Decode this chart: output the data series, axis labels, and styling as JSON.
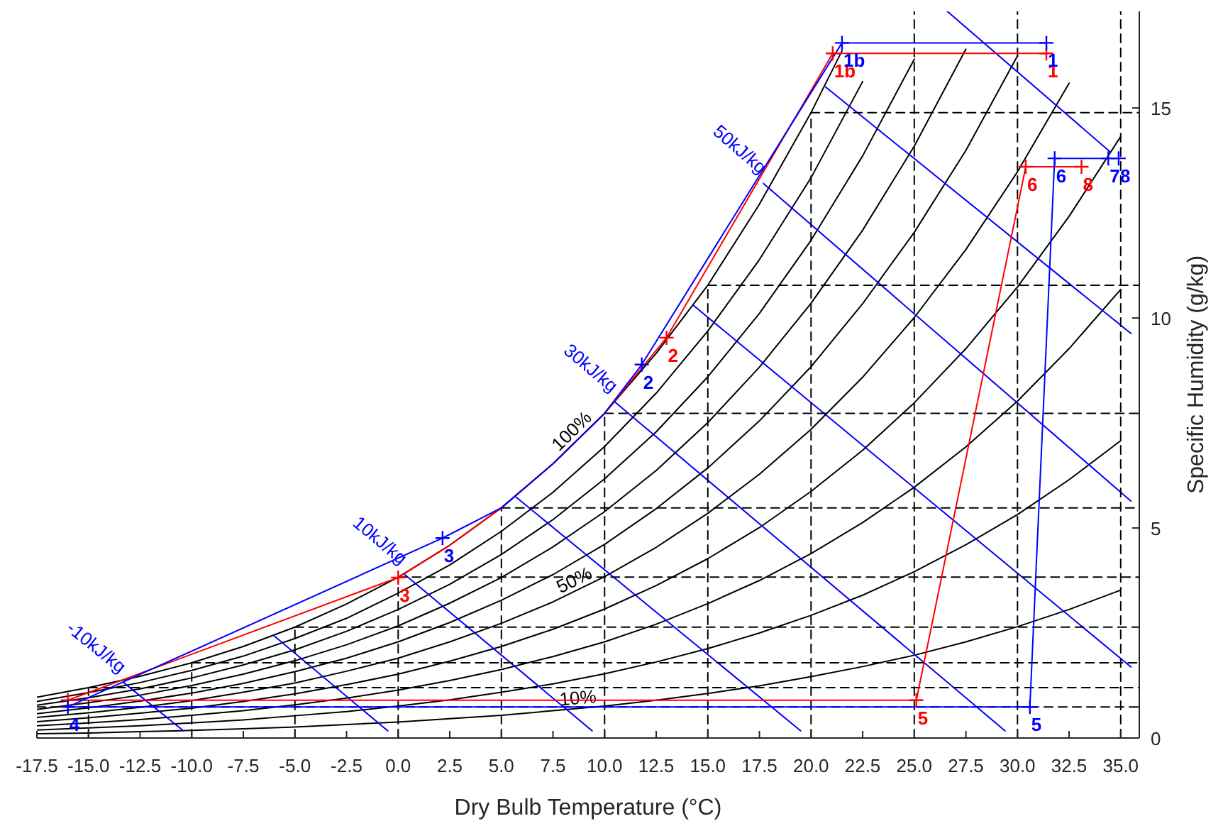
{
  "chart_data": {
    "type": "line",
    "xlabel": "Dry Bulb Temperature (°C)",
    "ylabel": "Specific Humidity (g/kg)",
    "xlim": [
      -17.5,
      35.9
    ],
    "ylim": [
      0,
      17.3
    ],
    "xticks": [
      {
        "value": -17.5,
        "label": "-17.5"
      },
      {
        "value": -15,
        "label": "-15.0"
      },
      {
        "value": -12.5,
        "label": "-12.5"
      },
      {
        "value": -10,
        "label": "-10.0"
      },
      {
        "value": -7.5,
        "label": "-7.5"
      },
      {
        "value": -5,
        "label": "-5.0"
      },
      {
        "value": -2.5,
        "label": "-2.5"
      },
      {
        "value": 0,
        "label": "0.0"
      },
      {
        "value": 2.5,
        "label": "2.5"
      },
      {
        "value": 5,
        "label": "5.0"
      },
      {
        "value": 7.5,
        "label": "7.5"
      },
      {
        "value": 10,
        "label": "10.0"
      },
      {
        "value": 12.5,
        "label": "12.5"
      },
      {
        "value": 15,
        "label": "15.0"
      },
      {
        "value": 17.5,
        "label": "17.5"
      },
      {
        "value": 20,
        "label": "20.0"
      },
      {
        "value": 22.5,
        "label": "22.5"
      },
      {
        "value": 25,
        "label": "25.0"
      },
      {
        "value": 27.5,
        "label": "27.5"
      },
      {
        "value": 30,
        "label": "30.0"
      },
      {
        "value": 32.5,
        "label": "32.5"
      },
      {
        "value": 35,
        "label": "35.0"
      }
    ],
    "yticks": [
      0,
      5,
      10,
      15
    ],
    "series": [
      {
        "name": "10%",
        "color": "#000000",
        "x": [
          -17.5,
          -15,
          -12.5,
          -10,
          -7.5,
          -5,
          -2.5,
          0,
          2.5,
          5,
          7.5,
          10,
          12.5,
          15,
          17.5,
          20,
          22.5,
          25,
          27.5,
          30,
          32.5,
          35
        ],
        "values": [
          0.1,
          0.12,
          0.15,
          0.18,
          0.22,
          0.26,
          0.32,
          0.38,
          0.46,
          0.54,
          0.65,
          0.76,
          0.9,
          1.06,
          1.24,
          1.46,
          1.7,
          1.97,
          2.29,
          2.65,
          3.06,
          3.52
        ]
      },
      {
        "color": "#000000",
        "x": [
          -17.5,
          -15,
          -12.5,
          -10,
          -7.5,
          -5,
          -2.5,
          0,
          2.5,
          5,
          7.5,
          10,
          12.5,
          15,
          17.5,
          20,
          22.5,
          25,
          27.5,
          30,
          32.5,
          35
        ],
        "values": [
          0.19,
          0.24,
          0.29,
          0.36,
          0.43,
          0.53,
          0.63,
          0.76,
          0.91,
          1.09,
          1.29,
          1.53,
          1.81,
          2.13,
          2.5,
          2.92,
          3.4,
          3.96,
          4.6,
          5.32,
          6.15,
          7.08
        ]
      },
      {
        "color": "#000000",
        "x": [
          -17.5,
          -15,
          -12.5,
          -10,
          -7.5,
          -5,
          -2.5,
          0,
          2.5,
          5,
          7.5,
          10,
          12.5,
          15,
          17.5,
          20,
          22.5,
          25,
          27.5,
          30,
          32.5,
          35
        ],
        "values": [
          0.29,
          0.36,
          0.44,
          0.54,
          0.65,
          0.79,
          0.95,
          1.14,
          1.37,
          1.63,
          1.94,
          2.29,
          2.71,
          3.2,
          3.75,
          4.39,
          5.13,
          5.97,
          6.93,
          8.02,
          9.27,
          10.68
        ]
      },
      {
        "color": "#000000",
        "x": [
          -17.5,
          -15,
          -12.5,
          -10,
          -7.5,
          -5,
          -2.5,
          0,
          2.5,
          5,
          7.5,
          10,
          12.5,
          15,
          17.5,
          20,
          22.5,
          25,
          27.5,
          30,
          32.5,
          35
        ],
        "values": [
          0.39,
          0.48,
          0.59,
          0.71,
          0.87,
          1.05,
          1.27,
          1.52,
          1.83,
          2.18,
          2.59,
          3.07,
          3.63,
          4.27,
          5.01,
          5.87,
          6.85,
          7.98,
          9.27,
          10.74,
          12.42,
          14.32
        ]
      },
      {
        "name": "50%",
        "color": "#000000",
        "x": [
          -17.5,
          -15,
          -12.5,
          -10,
          -7.5,
          -5,
          -2.5,
          0,
          2.5,
          5,
          7.5,
          10,
          12.5,
          15,
          17.5,
          20,
          22.5,
          25,
          27.5,
          30,
          32.5
        ],
        "values": [
          0.49,
          0.6,
          0.73,
          0.89,
          1.09,
          1.31,
          1.59,
          1.9,
          2.29,
          2.73,
          3.24,
          3.84,
          4.54,
          5.35,
          6.28,
          7.35,
          8.59,
          10.01,
          11.63,
          13.48,
          15.59
        ]
      },
      {
        "color": "#000000",
        "x": [
          -17.5,
          -15,
          -12.5,
          -10,
          -7.5,
          -5,
          -2.5,
          0,
          2.5,
          5,
          7.5,
          10,
          12.5,
          15,
          17.5,
          20,
          22.5,
          25,
          27.5,
          30
        ],
        "values": [
          0.58,
          0.72,
          0.88,
          1.07,
          1.3,
          1.58,
          1.9,
          2.29,
          2.75,
          3.28,
          3.89,
          4.61,
          5.46,
          6.43,
          7.55,
          8.84,
          10.34,
          12.04,
          13.99,
          16.24
        ]
      },
      {
        "color": "#000000",
        "x": [
          -17.5,
          -15,
          -12.5,
          -10,
          -7.5,
          -5,
          -2.5,
          0,
          2.5,
          5,
          7.5,
          10,
          12.5,
          15,
          17.5,
          20,
          22.5,
          25,
          27.5
        ],
        "values": [
          0.68,
          0.84,
          1.02,
          1.25,
          1.52,
          1.84,
          2.22,
          2.67,
          3.21,
          3.82,
          4.55,
          5.39,
          6.37,
          7.51,
          8.83,
          10.35,
          12.09,
          14.09,
          16.4
        ]
      },
      {
        "color": "#000000",
        "x": [
          -17.5,
          -15,
          -12.5,
          -10,
          -7.5,
          -5,
          -2.5,
          0,
          2.5,
          5,
          7.5,
          10,
          12.5,
          15,
          17.5,
          20,
          22.5,
          25
        ],
        "values": [
          0.78,
          0.96,
          1.17,
          1.43,
          1.74,
          2.1,
          2.54,
          3.06,
          3.66,
          4.37,
          5.2,
          6.17,
          7.29,
          8.6,
          10.11,
          11.85,
          13.86,
          16.16
        ]
      },
      {
        "color": "#000000",
        "x": [
          -17.5,
          -15,
          -12.5,
          -10,
          -7.5,
          -5,
          -2.5,
          0,
          2.5,
          5,
          7.5,
          10,
          12.5,
          15,
          17.5,
          20,
          22.5
        ],
        "values": [
          0.87,
          1.08,
          1.32,
          1.61,
          1.95,
          2.37,
          2.85,
          3.45,
          4.12,
          4.92,
          5.85,
          6.94,
          8.21,
          9.69,
          11.39,
          13.34,
          15.63
        ]
      },
      {
        "name": "100%",
        "color": "#000000",
        "x": [
          -17.5,
          -15,
          -12.5,
          -10,
          -7.5,
          -5,
          -2.5,
          0,
          2.5,
          5,
          7.5,
          10,
          12.5,
          15,
          17.5,
          20,
          21.5
        ],
        "values": [
          0.97,
          1.2,
          1.47,
          1.79,
          2.18,
          2.64,
          3.19,
          3.83,
          4.59,
          5.48,
          6.53,
          7.73,
          9.16,
          10.78,
          12.71,
          14.89,
          16.36
        ]
      },
      {
        "name": "-10kJ/kg",
        "color": "#0000ff",
        "x": [
          -13.3,
          -10.4
        ],
        "values": [
          1.32,
          0.17
        ]
      },
      {
        "color": "#0000ff",
        "x": [
          -6.0,
          -0.5
        ],
        "values": [
          2.43,
          0.17
        ]
      },
      {
        "name": "10kJ/kg",
        "color": "#0000ff",
        "x": [
          0.3,
          9.4
        ],
        "values": [
          3.9,
          0.17
        ]
      },
      {
        "color": "#0000ff",
        "x": [
          5.7,
          19.5
        ],
        "values": [
          5.74,
          0.17
        ]
      },
      {
        "name": "30kJ/kg",
        "color": "#0000ff",
        "x": [
          10.5,
          29.4
        ],
        "values": [
          8.0,
          0.17
        ]
      },
      {
        "color": "#0000ff",
        "x": [
          14.3,
          35.5
        ],
        "values": [
          10.3,
          1.69
        ]
      },
      {
        "name": "50kJ/kg",
        "color": "#0000ff",
        "x": [
          17.7,
          35.5
        ],
        "values": [
          13.2,
          5.64
        ]
      },
      {
        "color": "#0000ff",
        "x": [
          20.7,
          35.5
        ],
        "values": [
          15.5,
          9.63
        ]
      },
      {
        "color": "#0000ff",
        "x": [
          26.6,
          34.5
        ],
        "values": [
          17.3,
          13.95
        ]
      },
      {
        "color": "#000000",
        "line_style": "dashed",
        "x": [
          -15,
          -15
        ],
        "values": [
          0,
          1.2
        ]
      },
      {
        "color": "#000000",
        "line_style": "dashed",
        "x": [
          -10,
          -10
        ],
        "values": [
          0,
          1.79
        ]
      },
      {
        "color": "#000000",
        "line_style": "dashed",
        "x": [
          -5,
          -5
        ],
        "values": [
          0,
          2.64
        ]
      },
      {
        "color": "#000000",
        "line_style": "dashed",
        "x": [
          0,
          0
        ],
        "values": [
          0,
          3.83
        ]
      },
      {
        "color": "#000000",
        "line_style": "dashed",
        "x": [
          5,
          5
        ],
        "values": [
          0,
          5.48
        ]
      },
      {
        "color": "#000000",
        "line_style": "dashed",
        "x": [
          10,
          10
        ],
        "values": [
          0,
          7.73
        ]
      },
      {
        "color": "#000000",
        "line_style": "dashed",
        "x": [
          15,
          15
        ],
        "values": [
          0,
          10.78
        ]
      },
      {
        "color": "#000000",
        "line_style": "dashed",
        "x": [
          20,
          20
        ],
        "values": [
          0,
          14.89
        ]
      },
      {
        "color": "#000000",
        "line_style": "dashed",
        "x": [
          25,
          25
        ],
        "values": [
          0,
          17.3
        ]
      },
      {
        "color": "#000000",
        "line_style": "dashed",
        "x": [
          30,
          30
        ],
        "values": [
          0,
          17.3
        ]
      },
      {
        "color": "#000000",
        "line_style": "dashed",
        "x": [
          35,
          35
        ],
        "values": [
          0,
          17.3
        ]
      },
      {
        "color": "#000000",
        "line_style": "dashed",
        "x": [
          -17.5,
          35.9
        ],
        "values": [
          0.74,
          0.74
        ]
      },
      {
        "color": "#000000",
        "line_style": "dashed",
        "x": [
          -15,
          35.9
        ],
        "values": [
          1.2,
          1.2
        ]
      },
      {
        "color": "#000000",
        "line_style": "dashed",
        "x": [
          -10,
          35.9
        ],
        "values": [
          1.79,
          1.79
        ]
      },
      {
        "color": "#000000",
        "line_style": "dashed",
        "x": [
          -5,
          35.9
        ],
        "values": [
          2.64,
          2.64
        ]
      },
      {
        "color": "#000000",
        "line_style": "dashed",
        "x": [
          0,
          35.9
        ],
        "values": [
          3.83,
          3.83
        ]
      },
      {
        "color": "#000000",
        "line_style": "dashed",
        "x": [
          5,
          35.9
        ],
        "values": [
          5.48,
          5.48
        ]
      },
      {
        "color": "#000000",
        "line_style": "dashed",
        "x": [
          10,
          35.9
        ],
        "values": [
          7.73,
          7.73
        ]
      },
      {
        "color": "#000000",
        "line_style": "dashed",
        "x": [
          15,
          35.9
        ],
        "values": [
          10.78,
          10.78
        ]
      },
      {
        "color": "#000000",
        "line_style": "dashed",
        "x": [
          20,
          35.9
        ],
        "values": [
          14.89,
          14.89
        ]
      },
      {
        "color": "#ff0000",
        "x": [
          31.4,
          21.05,
          13.0,
          10,
          7.5,
          5,
          2.5,
          0,
          -16.0,
          25.1,
          30.4,
          33.1
        ],
        "values": [
          16.3,
          16.3,
          9.53,
          7.73,
          6.53,
          5.48,
          4.59,
          3.82,
          0.9,
          0.9,
          13.6,
          13.6
        ]
      },
      {
        "color": "#0000ff",
        "x": [
          31.4,
          21.5,
          11.8,
          10,
          7.5,
          5,
          2.15,
          -16.0,
          30.6,
          31.8,
          34.4,
          34.9
        ],
        "values": [
          16.55,
          16.55,
          8.89,
          7.73,
          6.53,
          5.48,
          4.76,
          0.74,
          0.74,
          13.8,
          13.8,
          13.8
        ]
      },
      {
        "type": "scatter",
        "marker": "cross",
        "color": "#ff0000",
        "name": "1",
        "x": [
          31.4
        ],
        "values": [
          16.3
        ]
      },
      {
        "type": "scatter",
        "marker": "cross",
        "color": "#ff0000",
        "name": "1b",
        "x": [
          21.05
        ],
        "values": [
          16.3
        ]
      },
      {
        "type": "scatter",
        "marker": "cross",
        "color": "#ff0000",
        "name": "2",
        "x": [
          13.0
        ],
        "values": [
          9.53
        ]
      },
      {
        "type": "scatter",
        "marker": "cross",
        "color": "#ff0000",
        "name": "3",
        "x": [
          0
        ],
        "values": [
          3.82
        ]
      },
      {
        "type": "scatter",
        "marker": "cross",
        "color": "#ff0000",
        "x": [
          -16.0
        ],
        "values": [
          0.9
        ]
      },
      {
        "type": "scatter",
        "marker": "cross",
        "color": "#ff0000",
        "name": "5",
        "x": [
          25.1
        ],
        "values": [
          0.9
        ]
      },
      {
        "type": "scatter",
        "marker": "cross",
        "color": "#ff0000",
        "name": "6",
        "x": [
          30.4
        ],
        "values": [
          13.6
        ]
      },
      {
        "type": "scatter",
        "marker": "cross",
        "color": "#ff0000",
        "name": "8",
        "x": [
          33.1
        ],
        "values": [
          13.6
        ]
      },
      {
        "type": "scatter",
        "marker": "cross",
        "color": "#0000ff",
        "name": "1",
        "x": [
          31.4
        ],
        "values": [
          16.55
        ]
      },
      {
        "type": "scatter",
        "marker": "cross",
        "color": "#0000ff",
        "name": "1b",
        "x": [
          21.5
        ],
        "values": [
          16.55
        ]
      },
      {
        "type": "scatter",
        "marker": "cross",
        "color": "#0000ff",
        "name": "2",
        "x": [
          11.8
        ],
        "values": [
          8.89
        ]
      },
      {
        "type": "scatter",
        "marker": "cross",
        "color": "#0000ff",
        "name": "3",
        "x": [
          2.15
        ],
        "values": [
          4.76
        ]
      },
      {
        "type": "scatter",
        "marker": "cross",
        "color": "#0000ff",
        "name": "4",
        "x": [
          -16.0
        ],
        "values": [
          0.74
        ]
      },
      {
        "type": "scatter",
        "marker": "cross",
        "color": "#0000ff",
        "name": "5",
        "x": [
          30.6
        ],
        "values": [
          0.74
        ]
      },
      {
        "type": "scatter",
        "marker": "cross",
        "color": "#0000ff",
        "name": "6",
        "x": [
          31.8
        ],
        "values": [
          13.8
        ]
      },
      {
        "type": "scatter",
        "marker": "cross",
        "color": "#0000ff",
        "name": "7",
        "x": [
          34.4
        ],
        "values": [
          13.8
        ]
      },
      {
        "type": "scatter",
        "marker": "cross",
        "color": "#0000ff",
        "name": "8",
        "x": [
          34.9
        ],
        "values": [
          13.8
        ]
      }
    ]
  }
}
